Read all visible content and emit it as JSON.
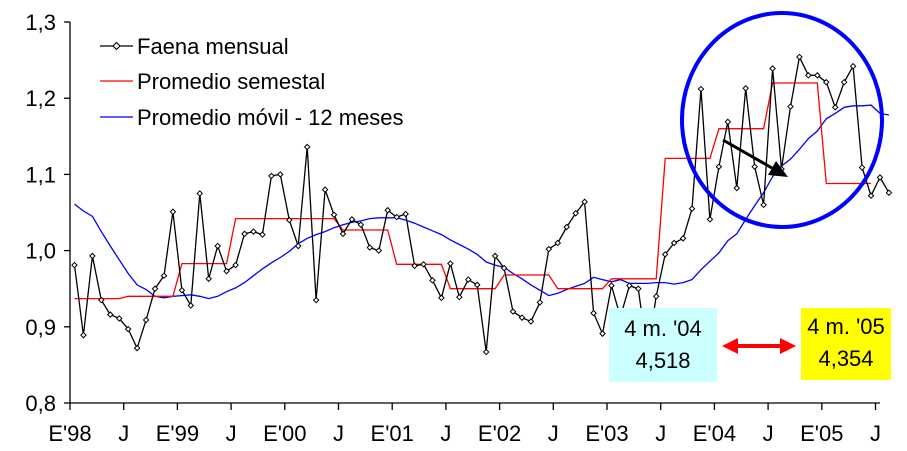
{
  "chart_data": {
    "type": "line",
    "ylim": [
      0.8,
      1.3
    ],
    "y_ticks": [
      "0,8",
      "0,9",
      "1,0",
      "1,1",
      "1,2",
      "1,3"
    ],
    "x_ticks": [
      "E'98",
      "J",
      "E'99",
      "J",
      "E'00",
      "J",
      "E'01",
      "J",
      "E'02",
      "J",
      "E'03",
      "J",
      "E'04",
      "J",
      "E'05",
      "J"
    ],
    "grid": false,
    "legend_position": "top-left",
    "series": [
      {
        "name": "Faena mensual",
        "color": "#000000",
        "marker": "diamond",
        "values": [
          0.981,
          0.889,
          0.993,
          0.935,
          0.916,
          0.911,
          0.897,
          0.872,
          0.909,
          0.95,
          0.967,
          1.051,
          0.948,
          0.928,
          1.075,
          0.963,
          1.006,
          0.973,
          0.981,
          1.022,
          1.025,
          1.021,
          1.098,
          1.1,
          1.04,
          1.006,
          1.136,
          0.935,
          1.08,
          1.047,
          1.022,
          1.041,
          1.034,
          1.004,
          1.0,
          1.053,
          1.044,
          1.048,
          0.98,
          0.982,
          0.961,
          0.938,
          0.983,
          0.939,
          0.962,
          0.955,
          0.867,
          0.993,
          0.977,
          0.92,
          0.912,
          0.907,
          0.932,
          1.002,
          1.01,
          1.031,
          1.049,
          1.064,
          0.918,
          0.891,
          0.954,
          0.913,
          0.954,
          0.95,
          0.863,
          0.94,
          0.995,
          1.01,
          1.016,
          1.055,
          1.212,
          1.041,
          1.11,
          1.169,
          1.082,
          1.213,
          1.11,
          1.06,
          1.239,
          1.107,
          1.189,
          1.254,
          1.23,
          1.23,
          1.221,
          1.188,
          1.221,
          1.242,
          1.109,
          1.072,
          1.096,
          1.076
        ]
      },
      {
        "name": "Promedio semestal",
        "color": "#ff0000",
        "marker": "none",
        "values": [
          0.937,
          0.937,
          0.937,
          0.937,
          0.937,
          0.937,
          0.94,
          0.94,
          0.94,
          0.94,
          0.94,
          0.94,
          0.983,
          0.983,
          0.983,
          0.983,
          0.983,
          0.983,
          1.042,
          1.042,
          1.042,
          1.042,
          1.042,
          1.042,
          1.042,
          1.042,
          1.042,
          1.042,
          1.042,
          1.042,
          1.027,
          1.027,
          1.027,
          1.027,
          1.027,
          1.027,
          0.982,
          0.982,
          0.982,
          0.982,
          0.982,
          0.982,
          0.95,
          0.95,
          0.95,
          0.95,
          0.95,
          0.95,
          0.968,
          0.968,
          0.968,
          0.968,
          0.968,
          0.968,
          0.95,
          0.95,
          0.95,
          0.95,
          0.95,
          0.95,
          0.963,
          0.963,
          0.963,
          0.963,
          0.963,
          0.963,
          1.121,
          1.121,
          1.121,
          1.121,
          1.121,
          1.121,
          1.16,
          1.16,
          1.16,
          1.16,
          1.16,
          1.16,
          1.22,
          1.22,
          1.22,
          1.22,
          1.22,
          1.22,
          1.088,
          1.088,
          1.088,
          1.088,
          1.088,
          1.088
        ]
      },
      {
        "name": "Promedio móvil - 12 meses",
        "color": "#0000ff",
        "marker": "none",
        "values": [
          1.061,
          1.052,
          1.045,
          1.025,
          1.006,
          0.988,
          0.97,
          0.955,
          0.949,
          0.94,
          0.938,
          0.94,
          0.941,
          0.942,
          0.94,
          0.937,
          0.94,
          0.946,
          0.951,
          0.958,
          0.967,
          0.976,
          0.984,
          0.991,
          0.999,
          1.009,
          1.016,
          1.021,
          1.025,
          1.03,
          1.034,
          1.037,
          1.039,
          1.042,
          1.043,
          1.043,
          1.043,
          1.04,
          1.036,
          1.031,
          1.026,
          1.021,
          1.014,
          1.008,
          1.002,
          0.995,
          0.985,
          0.981,
          0.978,
          0.97,
          0.963,
          0.955,
          0.948,
          0.941,
          0.944,
          0.949,
          0.953,
          0.957,
          0.965,
          0.962,
          0.959,
          0.962,
          0.957,
          0.957,
          0.957,
          0.958,
          0.958,
          0.956,
          0.958,
          0.962,
          0.975,
          0.986,
          0.997,
          1.013,
          1.022,
          1.041,
          1.059,
          1.076,
          1.097,
          1.111,
          1.12,
          1.133,
          1.147,
          1.157,
          1.173,
          1.18,
          1.188,
          1.19,
          1.19,
          1.191,
          1.18,
          1.178
        ]
      }
    ],
    "annotations": {
      "box_2004": {
        "line1": "4 m. '04",
        "line2": "4,518",
        "color": "#ccffff"
      },
      "box_2005": {
        "line1": "4 m. '05",
        "line2": "4,354",
        "color": "#ffff00"
      },
      "double_arrow_color": "#ff0000",
      "ellipse_color": "#0000ff",
      "trend_arrow_color": "#000000"
    }
  }
}
